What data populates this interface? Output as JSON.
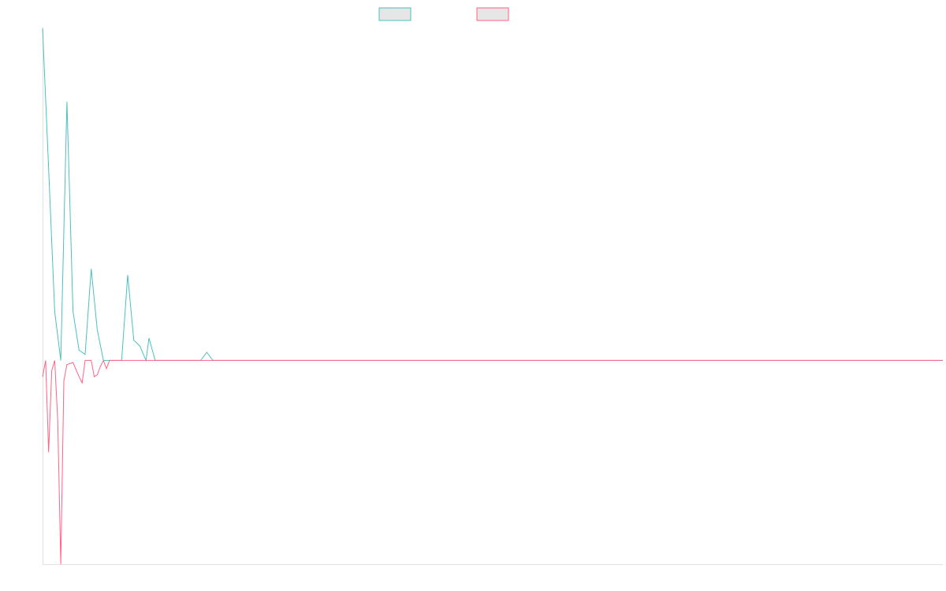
{
  "chart_data": {
    "type": "line",
    "title": "",
    "xlabel": "",
    "ylabel": "",
    "x_count": 297,
    "ylim": [
      -100,
      163
    ],
    "grid": false,
    "legend": {
      "placement": "top-center"
    },
    "series": [
      {
        "color": "#4bc0c0",
        "fill": "#e6e6e6",
        "points": [
          [
            0,
            163
          ],
          [
            2,
            94
          ],
          [
            4,
            24
          ],
          [
            6,
            0
          ],
          [
            8,
            127
          ],
          [
            10,
            24
          ],
          [
            12,
            5
          ],
          [
            14,
            3
          ],
          [
            16,
            45
          ],
          [
            18,
            15
          ],
          [
            20,
            0
          ],
          [
            22,
            0
          ],
          [
            24,
            0
          ],
          [
            26,
            0
          ],
          [
            28,
            42
          ],
          [
            30,
            10
          ],
          [
            32,
            7
          ],
          [
            34,
            0
          ],
          [
            35,
            11
          ],
          [
            37,
            0
          ],
          [
            40,
            0
          ],
          [
            43,
            0
          ],
          [
            45,
            0
          ],
          [
            48,
            0
          ],
          [
            50,
            0
          ],
          [
            52,
            0
          ],
          [
            54,
            4
          ],
          [
            56,
            0
          ],
          [
            80,
            0
          ],
          [
            82,
            0
          ],
          [
            84,
            0
          ],
          [
            86,
            0
          ],
          [
            88,
            0
          ],
          [
            90,
            0
          ],
          [
            92,
            0
          ],
          [
            94,
            0
          ],
          [
            96,
            0
          ],
          [
            98,
            0
          ],
          [
            100,
            0
          ],
          [
            102,
            0
          ],
          [
            104,
            0
          ],
          [
            106,
            0
          ],
          [
            108,
            0
          ],
          [
            110,
            0
          ],
          [
            112,
            0
          ],
          [
            114,
            0
          ],
          [
            116,
            0
          ],
          [
            118,
            0
          ],
          [
            120,
            0
          ],
          [
            122,
            0
          ],
          [
            124,
            0
          ],
          [
            126,
            0
          ],
          [
            128,
            0
          ],
          [
            130,
            0
          ],
          [
            132,
            0
          ],
          [
            134,
            0
          ],
          [
            136,
            0
          ],
          [
            138,
            0
          ],
          [
            140,
            0
          ],
          [
            142,
            0
          ],
          [
            144,
            0
          ],
          [
            146,
            0
          ],
          [
            148,
            0
          ],
          [
            150,
            0
          ],
          [
            152,
            0
          ],
          [
            154,
            0
          ],
          [
            156,
            0
          ],
          [
            158,
            0
          ],
          [
            160,
            0
          ],
          [
            162,
            0
          ],
          [
            164,
            0
          ],
          [
            166,
            0
          ],
          [
            168,
            0
          ],
          [
            170,
            0
          ],
          [
            172,
            0
          ],
          [
            174,
            0
          ],
          [
            176,
            0
          ],
          [
            178,
            0
          ],
          [
            180,
            0
          ],
          [
            182,
            0
          ],
          [
            184,
            0
          ],
          [
            186,
            0
          ],
          [
            188,
            0
          ],
          [
            190,
            0
          ],
          [
            192,
            0
          ],
          [
            194,
            0
          ],
          [
            196,
            0
          ],
          [
            198,
            0
          ],
          [
            200,
            0
          ],
          [
            202,
            0
          ],
          [
            203,
            0
          ],
          [
            204,
            0
          ],
          [
            206,
            0
          ],
          [
            208,
            0
          ],
          [
            210,
            0
          ],
          [
            212,
            0
          ],
          [
            214,
            0
          ],
          [
            216,
            0
          ],
          [
            218,
            0
          ],
          [
            220,
            0
          ],
          [
            222,
            0
          ],
          [
            224,
            0
          ],
          [
            226,
            0
          ],
          [
            228,
            0
          ],
          [
            230,
            0
          ],
          [
            232,
            0
          ],
          [
            234,
            0
          ],
          [
            236,
            0
          ],
          [
            238,
            0
          ],
          [
            240,
            0
          ],
          [
            242,
            0
          ],
          [
            244,
            0
          ],
          [
            246,
            0
          ],
          [
            248,
            0
          ],
          [
            250,
            0
          ],
          [
            252,
            0
          ],
          [
            254,
            0
          ],
          [
            256,
            0
          ],
          [
            258,
            0
          ],
          [
            260,
            0
          ],
          [
            262,
            0
          ],
          [
            264,
            0
          ],
          [
            266,
            0
          ],
          [
            268,
            0
          ],
          [
            270,
            0
          ],
          [
            272,
            0
          ],
          [
            274,
            0
          ],
          [
            276,
            0
          ],
          [
            278,
            0
          ],
          [
            280,
            0
          ],
          [
            282,
            0
          ],
          [
            284,
            0
          ],
          [
            286,
            0
          ],
          [
            288,
            0
          ],
          [
            290,
            0
          ],
          [
            292,
            0
          ],
          [
            294,
            0
          ],
          [
            296,
            0
          ]
        ]
      },
      {
        "color": "#ff6384",
        "fill": "#e6e6e6",
        "points": [
          [
            0,
            -8
          ],
          [
            1,
            0
          ],
          [
            2,
            -45
          ],
          [
            3,
            -5
          ],
          [
            4,
            0
          ],
          [
            5,
            -30
          ],
          [
            6,
            -100
          ],
          [
            7,
            -10
          ],
          [
            8,
            -2
          ],
          [
            10,
            -1
          ],
          [
            12,
            -8
          ],
          [
            13,
            -11
          ],
          [
            14,
            0
          ],
          [
            16,
            0
          ],
          [
            17,
            -8
          ],
          [
            18,
            -7
          ],
          [
            19,
            -3
          ],
          [
            20,
            0
          ],
          [
            21,
            -4
          ],
          [
            22,
            0
          ]
        ]
      }
    ]
  }
}
